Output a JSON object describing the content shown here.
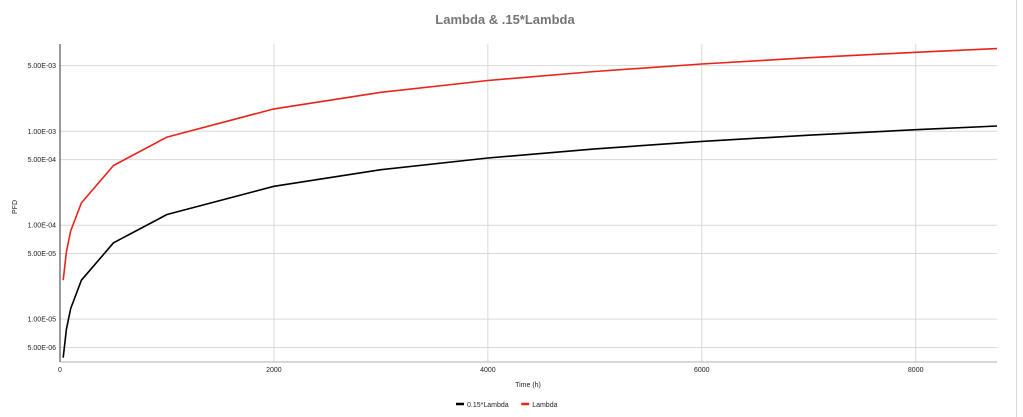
{
  "chart_data": {
    "type": "line",
    "title": "Lambda & .15*Lambda",
    "xlabel": "Time (h)",
    "ylabel": "PFD",
    "x_scale": "linear",
    "y_scale": "log",
    "xlim": [
      0,
      8760
    ],
    "ylim": [
      3.5e-06,
      0.0085
    ],
    "x_ticks": [
      0,
      2000,
      4000,
      6000,
      8000
    ],
    "x_tick_labels": [
      "0",
      "2000",
      "4000",
      "6000",
      "8000"
    ],
    "y_ticks": [
      5e-06,
      1e-05,
      5e-05,
      0.0001,
      0.0005,
      0.001,
      0.005
    ],
    "y_tick_labels": [
      "5.00E-06",
      "1.00E-05",
      "5.00E-05",
      "1.00E-04",
      "5.00E-04",
      "1.00E-03",
      "5.00E-03"
    ],
    "grid": true,
    "legend_position": "bottom",
    "x": [
      30,
      60,
      100,
      200,
      500,
      1000,
      2000,
      3000,
      4000,
      5000,
      6000,
      7000,
      8000,
      8760
    ],
    "series": [
      {
        "name": "0.15*Lambda",
        "color": "#000000",
        "values": [
          3.9e-06,
          7.8e-06,
          1.3e-05,
          2.6e-05,
          6.5e-05,
          0.00013,
          0.00026,
          0.00039,
          0.00052,
          0.00065,
          0.00078,
          0.00091,
          0.00104,
          0.00114
        ]
      },
      {
        "name": "Lambda",
        "color": "#e8231a",
        "values": [
          2.6e-05,
          5.2e-05,
          8.7e-05,
          0.000173,
          0.000433,
          0.000867,
          0.00173,
          0.0026,
          0.00347,
          0.00433,
          0.0052,
          0.00607,
          0.00693,
          0.0076
        ]
      }
    ]
  }
}
